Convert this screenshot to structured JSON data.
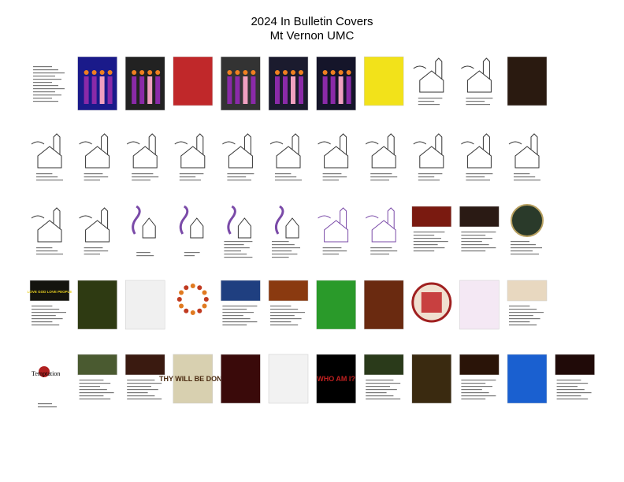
{
  "header": {
    "title": "2024 In Bulletin Covers",
    "subtitle": "Mt Vernon UMC"
  },
  "cover_texts": [
    "LOVE GOD LOVE PEOPLE",
    "Temptation",
    "THY WILL BE DONE",
    "WHO AM I?"
  ]
}
